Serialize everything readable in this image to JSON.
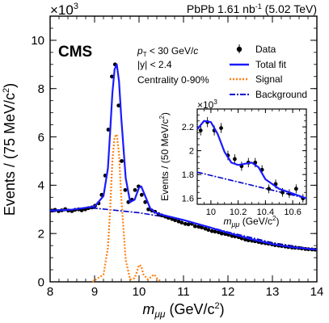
{
  "chart_data": {
    "type": "line",
    "header": {
      "experiment": "CMS",
      "luminosity": "PbPb 1.61 nb",
      "lumi_exponent": "-1",
      "energy": "(5.02 TeV)"
    },
    "selections": {
      "pt_prefix": "p",
      "pt_sub": "T",
      "pt_suffix": " < 30 GeV/",
      "pt_c": "c",
      "rapidity": "|y| < 2.4",
      "centrality": "Centrality 0-90%"
    },
    "main": {
      "xlabel_sym": "m",
      "xlabel_sub": "μμ",
      "xlabel_units": "(GeV/c",
      "xlabel_close": ")",
      "ylabel": "Events / (75 MeV/c",
      "ylabel_close": ")",
      "y_multiplier": "×10",
      "y_multiplier_exp": "3",
      "xlim": [
        8,
        14
      ],
      "ylim": [
        0,
        11000
      ],
      "xticks": [
        "8",
        "9",
        "10",
        "11",
        "12",
        "13",
        "14"
      ],
      "yticks": [
        "0",
        "2",
        "4",
        "6",
        "8",
        "10"
      ],
      "data_x": [
        8.04,
        8.11,
        8.19,
        8.26,
        8.34,
        8.41,
        8.49,
        8.56,
        8.64,
        8.71,
        8.79,
        8.86,
        8.94,
        9.01,
        9.09,
        9.16,
        9.24,
        9.31,
        9.39,
        9.46,
        9.54,
        9.61,
        9.69,
        9.76,
        9.84,
        9.91,
        9.99,
        10.06,
        10.14,
        10.21,
        10.29,
        10.36,
        10.44,
        10.51,
        10.59,
        10.66,
        10.74,
        10.81,
        10.89,
        10.96,
        11.04,
        11.11,
        11.19,
        11.26,
        11.34,
        11.41,
        11.49,
        11.56,
        11.64,
        11.71,
        11.79,
        11.86,
        11.94,
        12.01,
        12.09,
        12.16,
        12.24,
        12.31,
        12.39,
        12.46,
        12.54,
        12.61,
        12.69,
        12.76,
        12.84,
        12.91,
        12.99,
        13.06,
        13.14,
        13.21,
        13.29,
        13.36,
        13.44,
        13.51,
        13.59,
        13.66,
        13.74,
        13.81,
        13.89,
        13.96
      ],
      "data_y": [
        2950,
        2980,
        2930,
        2960,
        3010,
        2950,
        2930,
        2980,
        3000,
        2960,
        3000,
        3050,
        3080,
        3150,
        3250,
        3600,
        4400,
        6300,
        8500,
        9000,
        7300,
        5000,
        3800,
        3300,
        3400,
        3800,
        3950,
        3600,
        3300,
        3000,
        2950,
        2900,
        2800,
        2750,
        2700,
        2650,
        2600,
        2550,
        2500,
        2450,
        2400,
        2380,
        2400,
        2300,
        2280,
        2250,
        2200,
        2150,
        2100,
        2080,
        2050,
        2000,
        1980,
        1950,
        1900,
        1880,
        1850,
        1800,
        1750,
        1720,
        1700,
        1680,
        1650,
        1620,
        1600,
        1580,
        1550,
        1520,
        1500,
        1480,
        1460,
        1440,
        1420,
        1410,
        1400,
        1380,
        1360,
        1350,
        1340,
        1330
      ],
      "fit_x": [
        8.0,
        8.5,
        9.0,
        9.2,
        9.3,
        9.35,
        9.4,
        9.45,
        9.5,
        9.55,
        9.6,
        9.7,
        9.8,
        9.9,
        10.0,
        10.05,
        10.15,
        10.25,
        10.35,
        10.5,
        11.0,
        11.5,
        12.0,
        12.5,
        13.0,
        13.5,
        14.0
      ],
      "fit_y": [
        2950,
        2990,
        3120,
        3550,
        4700,
        6200,
        7800,
        8800,
        9000,
        8300,
        6800,
        4300,
        3300,
        3400,
        3900,
        3950,
        3500,
        3050,
        2880,
        2780,
        2560,
        2300,
        2030,
        1780,
        1560,
        1420,
        1340
      ],
      "signal_x": [
        8.95,
        9.2,
        9.3,
        9.35,
        9.4,
        9.45,
        9.5,
        9.55,
        9.6,
        9.7,
        9.8,
        9.9,
        9.95,
        10.0,
        10.05,
        10.1,
        10.2,
        10.3,
        10.35,
        10.4,
        10.5
      ],
      "signal_y": [
        0,
        300,
        1400,
        3000,
        5000,
        6000,
        6100,
        5300,
        3500,
        900,
        100,
        150,
        400,
        700,
        650,
        300,
        100,
        250,
        300,
        150,
        0
      ],
      "bkg_x": [
        8.0,
        9.0,
        10.0,
        11.0,
        12.0,
        13.0,
        14.0
      ],
      "bkg_y": [
        2900,
        3050,
        2860,
        2560,
        2060,
        1620,
        1330
      ]
    },
    "inset": {
      "xlabel_sym": "m",
      "xlabel_sub": "μμ",
      "xlabel_units": "(GeV/c",
      "xlabel_close": ")",
      "ylabel": "Events / (50 MeV/c",
      "ylabel_close": ")",
      "y_multiplier": "×10",
      "y_multiplier_exp": "3",
      "xlim": [
        9.9,
        10.7
      ],
      "ylim": [
        1550,
        2350
      ],
      "xticks": [
        "10",
        "10.2",
        "10.4",
        "10.6"
      ],
      "yticks": [
        "1.6",
        "1.8",
        "2",
        "2.2"
      ],
      "data_x": [
        9.925,
        9.975,
        10.025,
        10.075,
        10.125,
        10.175,
        10.225,
        10.275,
        10.325,
        10.375,
        10.425,
        10.475,
        10.525,
        10.575,
        10.625,
        10.675
      ],
      "data_y": [
        2170,
        2240,
        2170,
        2190,
        1960,
        1930,
        1870,
        1900,
        1900,
        1840,
        1680,
        1720,
        1650,
        1640,
        1680,
        1600
      ],
      "fit_x": [
        9.9,
        9.95,
        10.0,
        10.05,
        10.1,
        10.15,
        10.2,
        10.25,
        10.3,
        10.35,
        10.4,
        10.5,
        10.6,
        10.7
      ],
      "fit_y": [
        2180,
        2250,
        2240,
        2140,
        1990,
        1900,
        1880,
        1890,
        1900,
        1860,
        1760,
        1680,
        1640,
        1600
      ],
      "bkg_x": [
        9.9,
        10.7
      ],
      "bkg_y": [
        1820,
        1600
      ]
    },
    "legend": {
      "placement": "top-right",
      "entries": [
        "Data",
        "Total fit",
        "Signal",
        "Background"
      ]
    },
    "colors": {
      "fit": "#1a1aff",
      "signal": "#ff7f0e",
      "background": "#0000cc",
      "data": "#000000"
    }
  }
}
